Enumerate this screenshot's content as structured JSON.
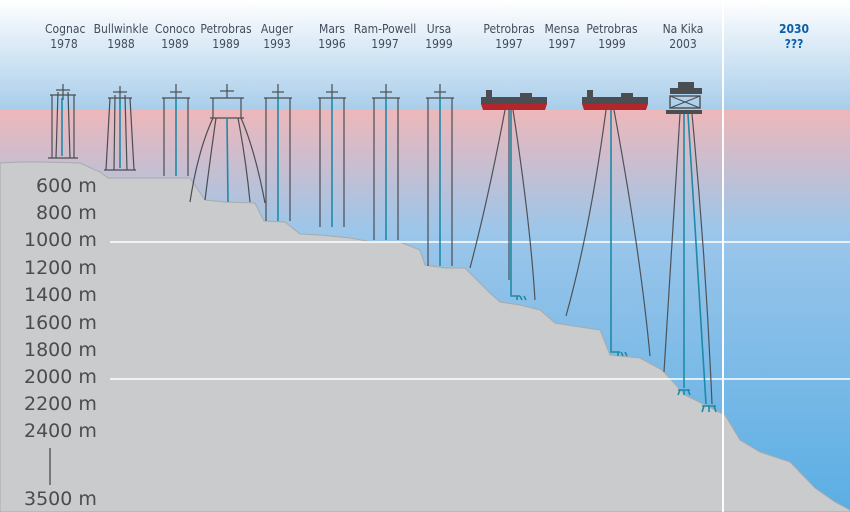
{
  "colors": {
    "header_top": "#ffffff",
    "header_bottom": "#a8cdea",
    "water_top": "#eeb7ba",
    "water_bottom": "#5aaee4",
    "seabed": "#cacbcc",
    "seabed_edge": "#a9aaab",
    "platform": "#4a4d52",
    "riser": "#1f8aa6",
    "mooring": "#4e5257",
    "hull": "#b3262c",
    "label_text": "#444a5c",
    "future_text": "#0b5fa8",
    "depth_text": "#4c4c4c"
  },
  "platforms": [
    {
      "name": "Cognac",
      "year": "1978",
      "type": "fixed-platform"
    },
    {
      "name": "Bullwinkle",
      "year": "1988",
      "type": "fixed-platform"
    },
    {
      "name": "Conoco",
      "year": "1989",
      "type": "tension-leg-platform"
    },
    {
      "name": "Petrobras",
      "year": "1989",
      "type": "semi-submersible"
    },
    {
      "name": "Auger",
      "year": "1993",
      "type": "tension-leg-platform"
    },
    {
      "name": "Mars",
      "year": "1996",
      "type": "tension-leg-platform"
    },
    {
      "name": "Ram-Powell",
      "year": "1997",
      "type": "tension-leg-platform"
    },
    {
      "name": "Ursa",
      "year": "1999",
      "type": "tension-leg-platform"
    },
    {
      "name": "Petrobras",
      "year": "1997",
      "type": "fpso"
    },
    {
      "name": "Mensa",
      "year": "1997",
      "type": "subsea-tieback"
    },
    {
      "name": "Petrobras",
      "year": "1999",
      "type": "fpso"
    },
    {
      "name": "Na Kika",
      "year": "2003",
      "type": "semi-submersible-hub"
    },
    {
      "name": "2030",
      "year": "???",
      "type": "future"
    }
  ],
  "depth_labels": [
    "600 m",
    "800 m",
    "1000 m",
    "1200 m",
    "1400 m",
    "1600 m",
    "1800 m",
    "2000 m",
    "2200 m",
    "2400 m",
    "3500 m"
  ]
}
